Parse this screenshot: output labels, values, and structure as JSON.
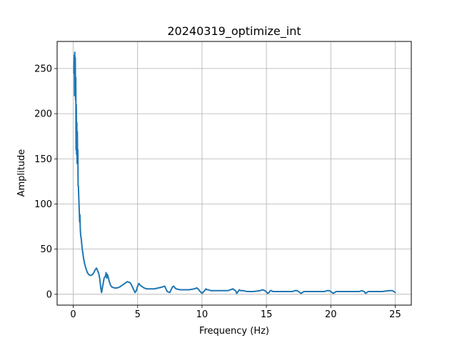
{
  "chart_data": {
    "type": "line",
    "title": "20240319_optimize_int",
    "xlabel": "Frequency (Hz)",
    "ylabel": "Amplitude",
    "xlim": [
      -1.25,
      26.25
    ],
    "ylim": [
      -12,
      280
    ],
    "x_ticks": [
      0,
      5,
      10,
      15,
      20,
      25
    ],
    "y_ticks": [
      0,
      50,
      100,
      150,
      200,
      250
    ],
    "grid": true,
    "series": [
      {
        "color": "#1f77b4",
        "x": [
          0.05,
          0.08,
          0.1,
          0.12,
          0.14,
          0.16,
          0.18,
          0.2,
          0.22,
          0.24,
          0.26,
          0.28,
          0.3,
          0.32,
          0.34,
          0.36,
          0.38,
          0.4,
          0.45,
          0.5,
          0.52,
          0.55,
          0.58,
          0.62,
          0.7,
          0.8,
          0.9,
          1.0,
          1.1,
          1.2,
          1.3,
          1.4,
          1.5,
          1.6,
          1.7,
          1.8,
          1.9,
          2.0,
          2.05,
          2.1,
          2.15,
          2.2,
          2.3,
          2.4,
          2.5,
          2.55,
          2.6,
          2.65,
          2.7,
          2.75,
          2.8,
          2.85,
          2.9,
          3.0,
          3.2,
          3.4,
          3.6,
          3.8,
          4.0,
          4.2,
          4.4,
          4.5,
          4.6,
          4.7,
          4.8,
          4.9,
          5.0,
          5.1,
          5.2,
          5.3,
          5.4,
          5.5,
          5.7,
          6.0,
          6.3,
          6.6,
          6.9,
          7.1,
          7.2,
          7.3,
          7.5,
          7.6,
          7.7,
          7.8,
          7.9,
          8.0,
          8.3,
          8.6,
          9.0,
          9.4,
          9.6,
          9.7,
          9.8,
          10.0,
          10.2,
          10.3,
          10.4,
          10.5,
          10.7,
          11.0,
          11.5,
          12.0,
          12.2,
          12.4,
          12.6,
          12.7,
          12.8,
          12.9,
          13.0,
          13.2,
          13.5,
          14.0,
          14.5,
          14.7,
          14.9,
          15.1,
          15.2,
          15.3,
          15.4,
          15.5,
          15.7,
          16.0,
          16.5,
          17.0,
          17.2,
          17.4,
          17.6,
          17.7,
          17.8,
          17.9,
          18.0,
          18.2,
          18.5,
          19.0,
          19.5,
          19.7,
          19.9,
          20.1,
          20.2,
          20.3,
          20.4,
          20.5,
          20.7,
          21.0,
          21.5,
          22.0,
          22.2,
          22.4,
          22.6,
          22.7,
          22.8,
          22.9,
          23.0,
          23.2,
          23.5,
          24.0,
          24.5,
          24.8,
          25.0
        ],
        "values": [
          245,
          265,
          220,
          268,
          230,
          262,
          215,
          240,
          160,
          210,
          155,
          190,
          145,
          180,
          150,
          160,
          120,
          120,
          100,
          80,
          88,
          72,
          65,
          62,
          50,
          40,
          33,
          28,
          24,
          22,
          21,
          21,
          22,
          24,
          27,
          29,
          26,
          22,
          18,
          12,
          6,
          2,
          10,
          18,
          20,
          24,
          18,
          22,
          20,
          17,
          14,
          12,
          10,
          8,
          7,
          7,
          8,
          10,
          12,
          14,
          13,
          11,
          8,
          5,
          2,
          4,
          9,
          12,
          10,
          9,
          8,
          7,
          6,
          6,
          6,
          7,
          8,
          9,
          6,
          3,
          2,
          5,
          8,
          9,
          7,
          6,
          5,
          5,
          5,
          6,
          7,
          6,
          4,
          1,
          4,
          6,
          5,
          5,
          4,
          4,
          4,
          4,
          5,
          6,
          4,
          1,
          3,
          5,
          4,
          4,
          3,
          3,
          4,
          5,
          4,
          1,
          2,
          4,
          4,
          3,
          3,
          3,
          3,
          3,
          4,
          4,
          2,
          1,
          2,
          3,
          3,
          3,
          3,
          3,
          3,
          4,
          4,
          2,
          1,
          2,
          3,
          3,
          3,
          3,
          3,
          3,
          3,
          4,
          3,
          1,
          2,
          3,
          3,
          3,
          3,
          3,
          4,
          4,
          2
        ]
      }
    ]
  }
}
